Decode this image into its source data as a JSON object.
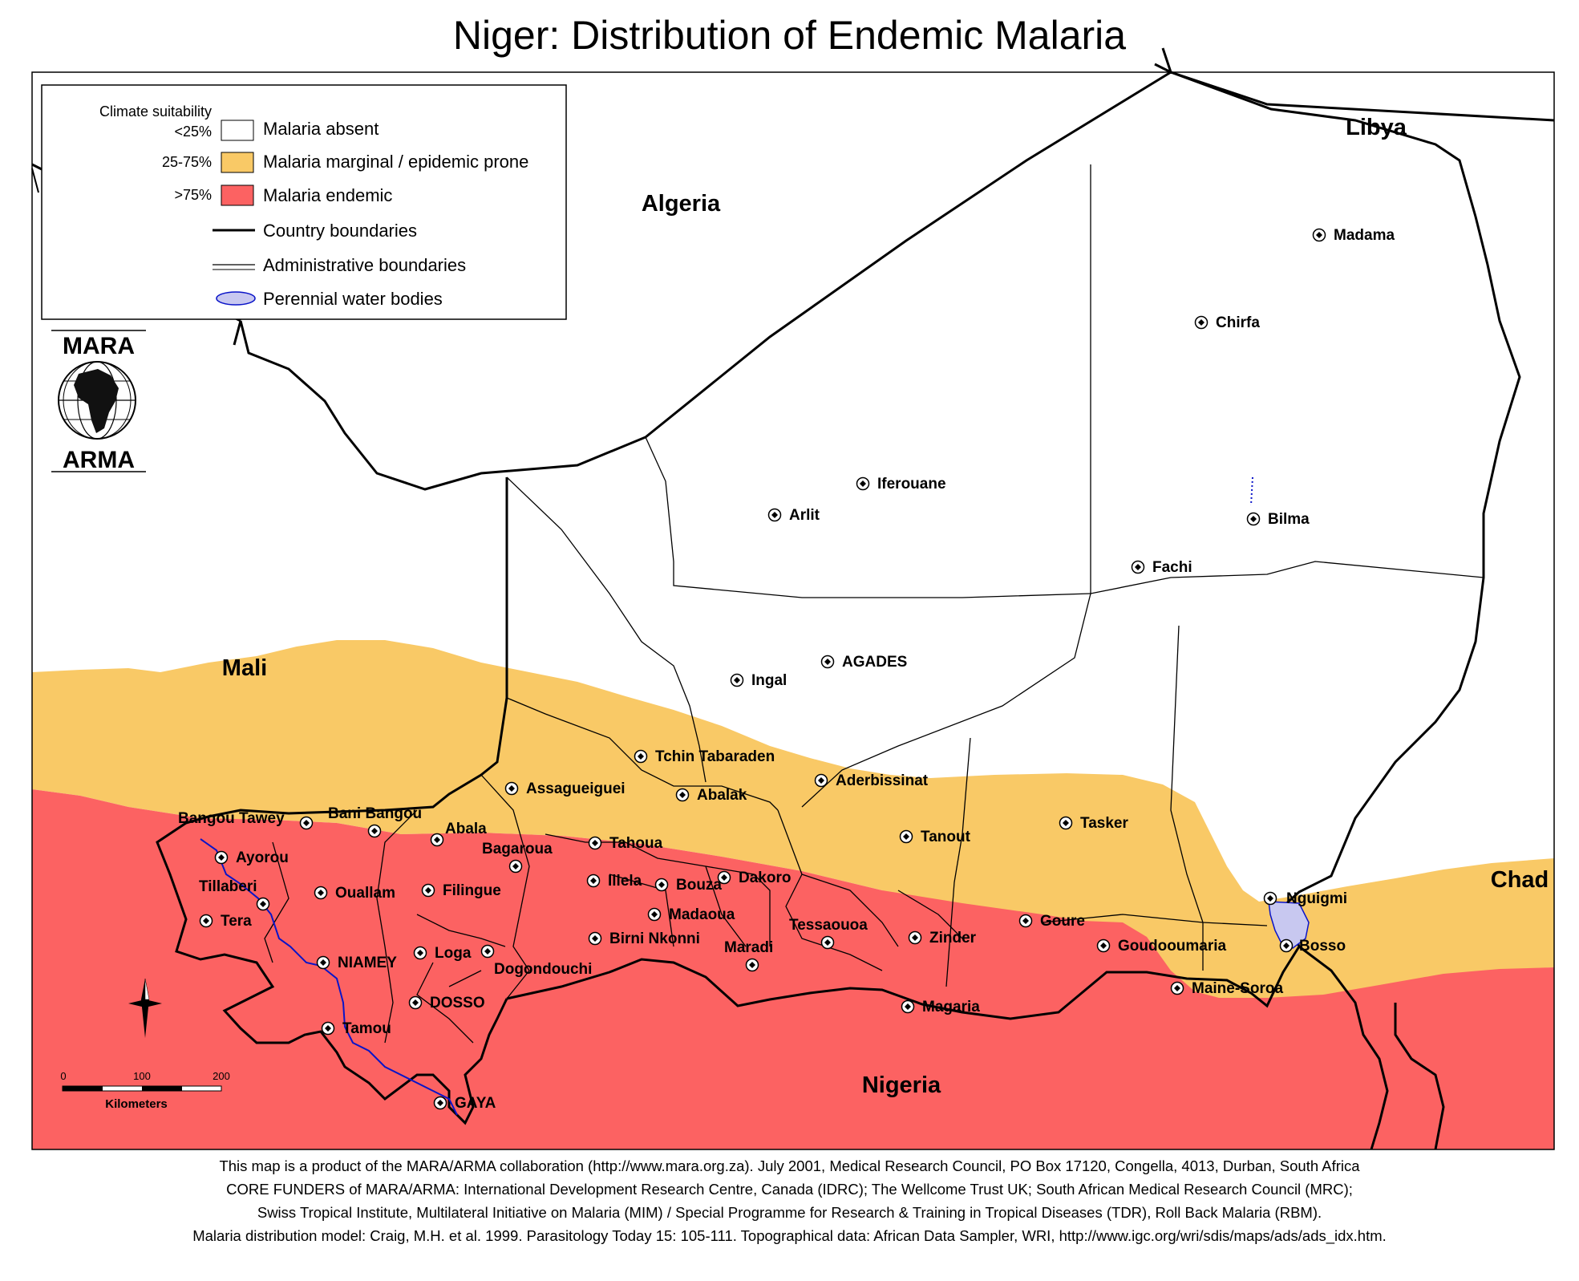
{
  "title": "Niger: Distribution of Endemic Malaria",
  "colors": {
    "absent": "#ffffff",
    "marginal": "#f9c966",
    "endemic": "#fc6262",
    "water": "#c8c8f0",
    "river": "#0a14c8",
    "boundary": "#000000"
  },
  "legend": {
    "heading": "Climate  suitability",
    "items": [
      {
        "range": "<25%",
        "label": "Malaria absent"
      },
      {
        "range": "25-75%",
        "label": "Malaria marginal / epidemic prone"
      },
      {
        "range": ">75%",
        "label": "Malaria endemic"
      }
    ],
    "lines": [
      {
        "label": "Country boundaries"
      },
      {
        "label": "Administrative boundaries"
      },
      {
        "label": "Perennial water bodies"
      }
    ]
  },
  "logo": {
    "top": "MARA",
    "bottom": "ARMA"
  },
  "countries": [
    "Algeria",
    "Libya",
    "Mali",
    "Chad",
    "Nigeria"
  ],
  "towns": [
    "Madama",
    "Chirfa",
    "Iferouane",
    "Arlit",
    "Bilma",
    "Fachi",
    "AGADES",
    "Ingal",
    "Tchin Tabaraden",
    "Assagueiguei",
    "Abalak",
    "Aderbissinat",
    "Tasker",
    "Tanout",
    "Bangou Tawey",
    "Bani Bangou",
    "Abala",
    "Tahoua",
    "Bagaroua",
    "Ayorou",
    "Tillaberi",
    "Ouallam",
    "Filingue",
    "Illela",
    "Bouza",
    "Dakoro",
    "Nguigmi",
    "Tera",
    "Madaoua",
    "Tessaouoa",
    "Goure",
    "Zinder",
    "Birni Nkonni",
    "Goudooumaria",
    "Bosso",
    "Loga",
    "NIAMEY",
    "Maradi",
    "Dogondouchi",
    "Maine-Soroa",
    "DOSSO",
    "Magaria",
    "Tamou",
    "GAYA"
  ],
  "scale": {
    "ticks": [
      "0",
      "100",
      "200"
    ],
    "unit": "Kilometers"
  },
  "footer": [
    "This map is a product of the MARA/ARMA collaboration (http://www.mara.org.za).  July 2001, Medical Research Council, PO Box 17120, Congella, 4013, Durban, South Africa",
    "CORE FUNDERS of MARA/ARMA: International Development Research Centre, Canada (IDRC); The Wellcome Trust UK; South African Medical Research Council (MRC);",
    "Swiss Tropical Institute, Multilateral Initiative on Malaria (MIM) / Special Programme for Research & Training in Tropical Diseases (TDR), Roll Back Malaria (RBM).",
    "Malaria distribution model: Craig, M.H. et al. 1999.  Parasitology Today 15: 105-111.     Topographical data: African Data Sampler, WRI, http://www.igc.org/wri/sdis/maps/ads/ads_idx.htm."
  ]
}
